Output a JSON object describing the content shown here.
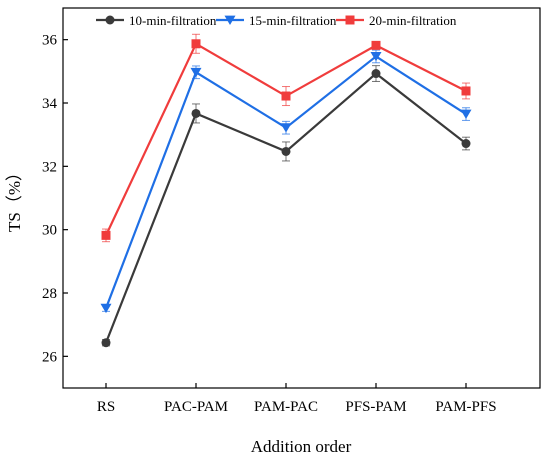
{
  "chart_data": {
    "type": "line",
    "title": "",
    "xlabel": "Addition order",
    "ylabel": "TS（%）",
    "categories": [
      "RS",
      "PAC-PAM",
      "PAM-PAC",
      "PFS-PAM",
      "PAM-PFS"
    ],
    "ylim": [
      25,
      37
    ],
    "yticks": [
      26,
      28,
      30,
      32,
      34,
      36
    ],
    "ytick_labels": [
      "26",
      "28",
      "30",
      "32",
      "34",
      "36"
    ],
    "grid": false,
    "legend_position": "top",
    "series": [
      {
        "name": "10-min-filtration",
        "color": "#3a3a3a",
        "marker": "circle",
        "values": [
          26.43,
          33.67,
          32.47,
          34.93,
          32.72
        ],
        "errors": [
          0.1,
          0.3,
          0.3,
          0.25,
          0.2
        ]
      },
      {
        "name": "15-min-filtration",
        "color": "#1f6fe5",
        "marker": "triangle-down",
        "values": [
          27.52,
          34.97,
          33.22,
          35.47,
          33.65
        ],
        "errors": [
          0.1,
          0.2,
          0.2,
          0.2,
          0.2
        ]
      },
      {
        "name": "20-min-filtration",
        "color": "#f03c3c",
        "marker": "square",
        "values": [
          29.82,
          35.87,
          34.22,
          35.82,
          34.38
        ],
        "errors": [
          0.2,
          0.3,
          0.3,
          0.1,
          0.25
        ]
      }
    ]
  }
}
